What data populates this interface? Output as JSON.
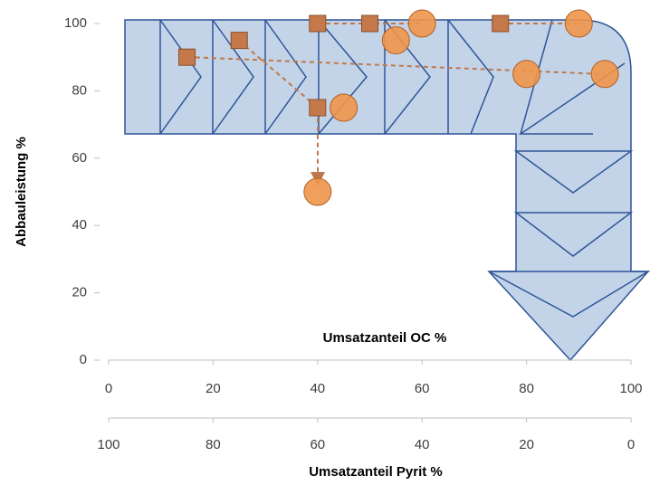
{
  "chart_data": {
    "type": "scatter",
    "ylabel": "Abbauleistung %",
    "xlabel": "Umsatzanteil OC %",
    "x2label": "Umsatzanteil Pyrit %",
    "xlim": [
      0,
      100
    ],
    "xticks": [
      0,
      20,
      40,
      60,
      80,
      100
    ],
    "x2lim": [
      100,
      0
    ],
    "x2ticks": [
      100,
      80,
      60,
      40,
      20,
      0
    ],
    "ylim": [
      0,
      100
    ],
    "yticks": [
      0,
      20,
      40,
      60,
      80,
      100
    ],
    "series": [
      {
        "marker": "square",
        "color": "#c5784a",
        "x": [
          15,
          25,
          40,
          50,
          75,
          40
        ],
        "values": [
          90,
          95,
          100,
          100,
          100,
          75
        ]
      },
      {
        "marker": "circle",
        "color": "#f0954a",
        "x": [
          55,
          60,
          90,
          45,
          80,
          95,
          40
        ],
        "values": [
          95,
          100,
          100,
          75,
          85,
          85,
          50
        ]
      }
    ]
  }
}
